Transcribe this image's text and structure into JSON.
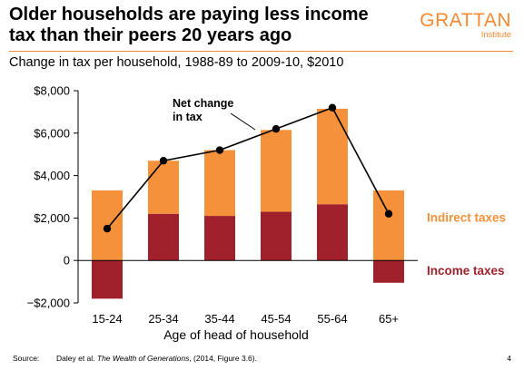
{
  "header": {
    "title_line1": "Older households are paying less income",
    "title_line2": "tax than their peers 20 years ago",
    "subtitle": "Change in tax per household, 1988-89 to 2009-10, $2010"
  },
  "logo": {
    "word": "GRATTAN",
    "sub": "Institute",
    "color": "#f58a33"
  },
  "footer": {
    "source_label": "Source:",
    "source_pre": "Daley et al. ",
    "source_title": "The Wealth of Generations",
    "source_post": ", (2014, Figure 3.6).",
    "page_number": "4"
  },
  "chart_data": {
    "type": "bar",
    "stacked": true,
    "categories": [
      "15-24",
      "25-34",
      "35-44",
      "45-54",
      "55-64",
      "65+"
    ],
    "series": [
      {
        "name": "Income taxes",
        "color": "#a0212b",
        "values": [
          -1800,
          2200,
          2100,
          2300,
          2650,
          -1050
        ]
      },
      {
        "name": "Indirect taxes",
        "color": "#f5913a",
        "values": [
          3300,
          2500,
          3100,
          3850,
          4500,
          3300
        ]
      }
    ],
    "line": {
      "annotation_line1": "Net change",
      "annotation_line2": "in tax",
      "values": [
        1500,
        4700,
        5200,
        6200,
        7200,
        2200
      ]
    },
    "ylim": [
      -2000,
      8000
    ],
    "yticks": [
      -2000,
      0,
      2000,
      4000,
      6000,
      8000
    ],
    "ytick_labels": [
      "−$2,000",
      "0",
      "$2,000",
      "$4,000",
      "$6,000",
      "$8,000"
    ],
    "xlabel": "Age of head of household",
    "ylabel": "",
    "grid": false,
    "legend": "right"
  }
}
